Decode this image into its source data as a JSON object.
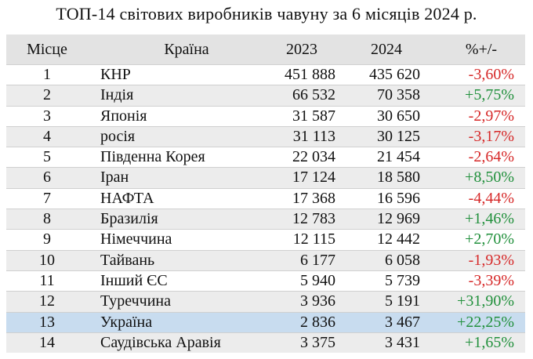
{
  "title": "ТОП-14 світових виробників чавуну за 6 місяців 2024 р.",
  "headers": {
    "rank": "Місце",
    "country": "Країна",
    "y2023": "2023",
    "y2024": "2024",
    "change": "%+/-"
  },
  "colors": {
    "negative": "#d62828",
    "positive": "#21903c",
    "highlight_row": "#c8dcef",
    "header_bg": "#e3e3e3",
    "stripe_bg": "#ececec"
  },
  "rows": [
    {
      "rank": "1",
      "country": "КНР",
      "y2023": "451 888",
      "y2024": "435 620",
      "change": "-3,60%",
      "trend": "neg"
    },
    {
      "rank": "2",
      "country": "Індія",
      "y2023": "66 532",
      "y2024": "70 358",
      "change": "+5,75%",
      "trend": "pos"
    },
    {
      "rank": "3",
      "country": "Японія",
      "y2023": "31 587",
      "y2024": "30 650",
      "change": "-2,97%",
      "trend": "neg"
    },
    {
      "rank": "4",
      "country": "росія",
      "y2023": "31 113",
      "y2024": "30 125",
      "change": "-3,17%",
      "trend": "neg"
    },
    {
      "rank": "5",
      "country": "Південна Корея",
      "y2023": "22 034",
      "y2024": "21 454",
      "change": "-2,64%",
      "trend": "neg"
    },
    {
      "rank": "6",
      "country": "Іран",
      "y2023": "17 124",
      "y2024": "18 580",
      "change": "+8,50%",
      "trend": "pos"
    },
    {
      "rank": "7",
      "country": "НАФТА",
      "y2023": "17 368",
      "y2024": "16 596",
      "change": "-4,44%",
      "trend": "neg"
    },
    {
      "rank": "8",
      "country": "Бразилія",
      "y2023": "12 783",
      "y2024": "12 969",
      "change": "+1,46%",
      "trend": "pos"
    },
    {
      "rank": "9",
      "country": "Німеччина",
      "y2023": "12 115",
      "y2024": "12 442",
      "change": "+2,70%",
      "trend": "pos"
    },
    {
      "rank": "10",
      "country": "Тайвань",
      "y2023": "6 177",
      "y2024": "6 058",
      "change": "-1,93%",
      "trend": "neg"
    },
    {
      "rank": "11",
      "country": "Інший ЄС",
      "y2023": "5 940",
      "y2024": "5 739",
      "change": "-3,39%",
      "trend": "neg"
    },
    {
      "rank": "12",
      "country": "Туреччина",
      "y2023": "3 936",
      "y2024": "5 191",
      "change": "+31,90%",
      "trend": "pos"
    },
    {
      "rank": "13",
      "country": "Україна",
      "y2023": "2 836",
      "y2024": "3 467",
      "change": "+22,25%",
      "trend": "pos"
    },
    {
      "rank": "14",
      "country": "Саудівська Аравія",
      "y2023": "3 375",
      "y2024": "3 431",
      "change": "+1,65%",
      "trend": "pos"
    }
  ]
}
